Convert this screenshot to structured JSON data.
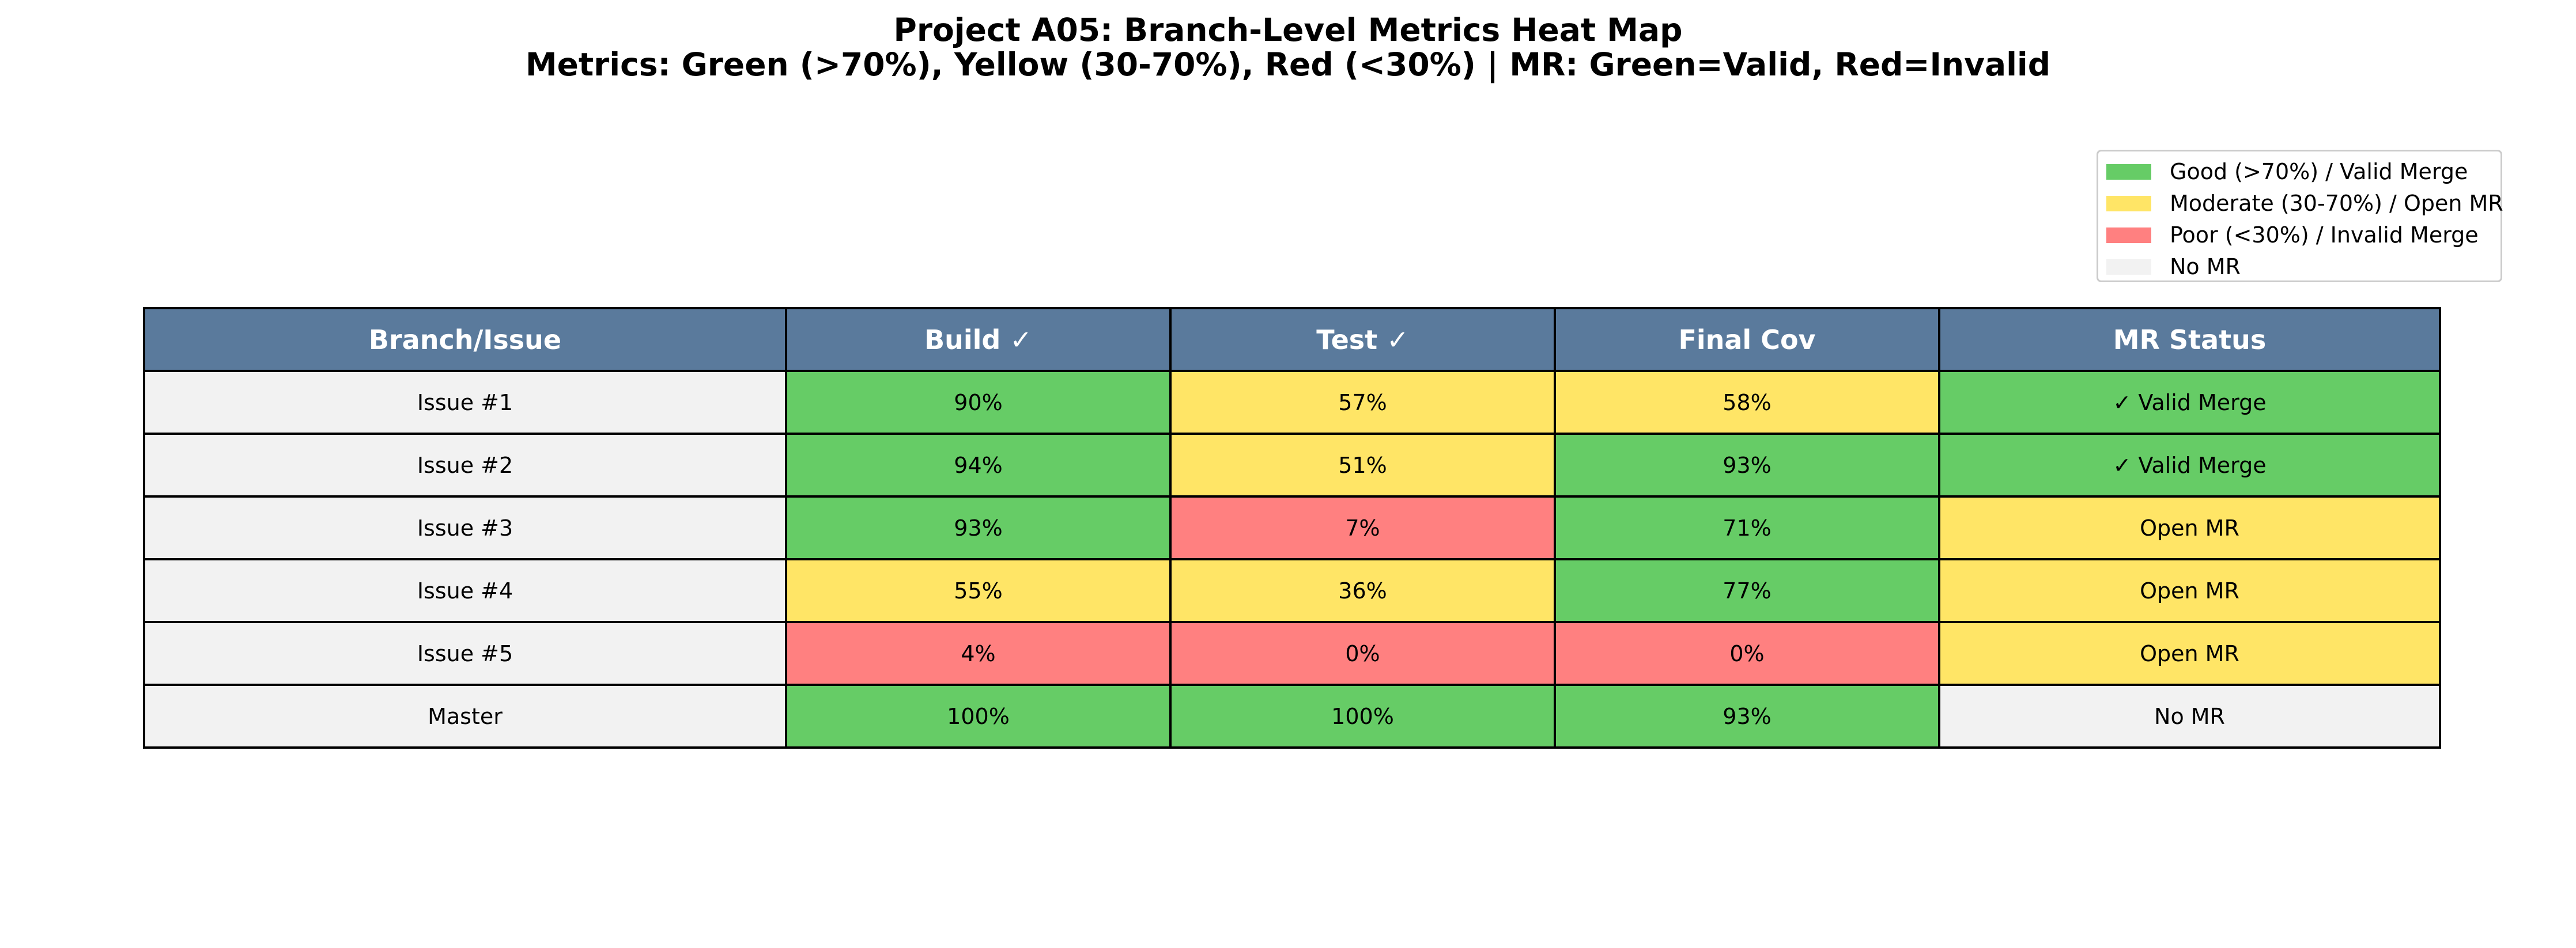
{
  "title_lines": [
    "Project A05: Branch-Level Metrics Heat Map",
    "Metrics: Green (>70%), Yellow (30-70%), Red (<30%) | MR: Green=Valid, Red=Invalid"
  ],
  "colors": {
    "good": "#66cc66",
    "moderate": "#ffe566",
    "poor": "#ff8080",
    "none": "#f2f2f2",
    "header": "#5a7a9c",
    "header_text": "#ffffff"
  },
  "legend": {
    "placement": "top-right",
    "items": [
      {
        "label": "Good (>70%) / Valid Merge",
        "level": "good"
      },
      {
        "label": "Moderate (30-70%) / Open MR",
        "level": "moderate"
      },
      {
        "label": "Poor (<30%) / Invalid Merge",
        "level": "poor"
      },
      {
        "label": "No MR",
        "level": "none"
      }
    ]
  },
  "chart_data": {
    "type": "table",
    "columns": [
      "Branch/Issue",
      "Build ✓",
      "Test ✓",
      "Final Cov",
      "MR Status"
    ],
    "rows": [
      {
        "branch": "Issue #1",
        "build": {
          "value": 90,
          "text": "90%",
          "level": "good"
        },
        "test": {
          "value": 57,
          "text": "57%",
          "level": "moderate"
        },
        "final_cov": {
          "value": 58,
          "text": "58%",
          "level": "moderate"
        },
        "mr_status": {
          "text": "✓ Valid Merge",
          "level": "good"
        }
      },
      {
        "branch": "Issue #2",
        "build": {
          "value": 94,
          "text": "94%",
          "level": "good"
        },
        "test": {
          "value": 51,
          "text": "51%",
          "level": "moderate"
        },
        "final_cov": {
          "value": 93,
          "text": "93%",
          "level": "good"
        },
        "mr_status": {
          "text": "✓ Valid Merge",
          "level": "good"
        }
      },
      {
        "branch": "Issue #3",
        "build": {
          "value": 93,
          "text": "93%",
          "level": "good"
        },
        "test": {
          "value": 7,
          "text": "7%",
          "level": "poor"
        },
        "final_cov": {
          "value": 71,
          "text": "71%",
          "level": "good"
        },
        "mr_status": {
          "text": "Open MR",
          "level": "moderate"
        }
      },
      {
        "branch": "Issue #4",
        "build": {
          "value": 55,
          "text": "55%",
          "level": "moderate"
        },
        "test": {
          "value": 36,
          "text": "36%",
          "level": "moderate"
        },
        "final_cov": {
          "value": 77,
          "text": "77%",
          "level": "good"
        },
        "mr_status": {
          "text": "Open MR",
          "level": "moderate"
        }
      },
      {
        "branch": "Issue #5",
        "build": {
          "value": 4,
          "text": "4%",
          "level": "poor"
        },
        "test": {
          "value": 0,
          "text": "0%",
          "level": "poor"
        },
        "final_cov": {
          "value": 0,
          "text": "0%",
          "level": "poor"
        },
        "mr_status": {
          "text": "Open MR",
          "level": "moderate"
        }
      },
      {
        "branch": "Master",
        "build": {
          "value": 100,
          "text": "100%",
          "level": "good"
        },
        "test": {
          "value": 100,
          "text": "100%",
          "level": "good"
        },
        "final_cov": {
          "value": 93,
          "text": "93%",
          "level": "good"
        },
        "mr_status": {
          "text": "No MR",
          "level": "none"
        }
      }
    ]
  }
}
